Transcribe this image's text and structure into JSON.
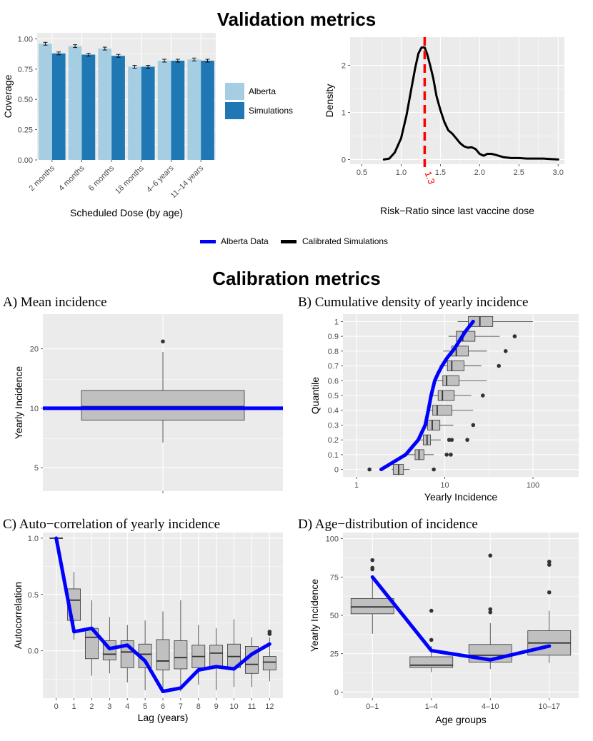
{
  "titles": {
    "validation": "Validation metrics",
    "calibration": "Calibration metrics"
  },
  "legend": {
    "alberta_data": "Alberta Data",
    "calibrated": "Calibrated Simulations"
  },
  "colors": {
    "alberta": "#a6cee3",
    "simulations": "#1f78b4",
    "line_blue": "#0000ff",
    "red_line": "#ff0000",
    "panel_bg": "#ebebeb",
    "box_fill": "#c0c0c0"
  },
  "chart_data": [
    {
      "id": "coverage",
      "type": "bar",
      "title": "",
      "xlabel": "Scheduled Dose (by age)",
      "ylabel": "Coverage",
      "ylim": [
        0,
        1.05
      ],
      "yticks": [
        "0.00",
        "0.25",
        "0.50",
        "0.75",
        "1.00"
      ],
      "categories": [
        "2 months",
        "4 months",
        "6 months",
        "18 months",
        "4–6 years",
        "11–14 years"
      ],
      "series": [
        {
          "name": "Alberta",
          "values": [
            0.96,
            0.94,
            0.92,
            0.77,
            0.82,
            0.83
          ]
        },
        {
          "name": "Simulations",
          "values": [
            0.88,
            0.87,
            0.86,
            0.77,
            0.82,
            0.82
          ]
        }
      ],
      "legend_labels": [
        "Alberta",
        "Simulations"
      ]
    },
    {
      "id": "density",
      "type": "line",
      "xlabel": "Risk−Ratio since last vaccine dose",
      "ylabel": "Density",
      "xlim": [
        0.35,
        3.08
      ],
      "ylim": [
        -0.1,
        2.6
      ],
      "xticks": [
        "0.5",
        "1.0",
        "1.5",
        "2.0",
        "2.5",
        "3.0"
      ],
      "yticks": [
        "0",
        "1",
        "2"
      ],
      "x": [
        0.78,
        0.85,
        0.92,
        1.0,
        1.07,
        1.13,
        1.18,
        1.22,
        1.26,
        1.3,
        1.33,
        1.37,
        1.41,
        1.45,
        1.5,
        1.55,
        1.6,
        1.65,
        1.7,
        1.75,
        1.8,
        1.85,
        1.9,
        1.95,
        2.0,
        2.05,
        2.1,
        2.15,
        2.2,
        2.3,
        2.4,
        2.5,
        2.6,
        2.7,
        2.8,
        2.9,
        3.0
      ],
      "y": [
        0.0,
        0.02,
        0.15,
        0.45,
        0.95,
        1.5,
        1.95,
        2.25,
        2.38,
        2.38,
        2.25,
        2.0,
        1.72,
        1.35,
        1.05,
        0.8,
        0.62,
        0.55,
        0.45,
        0.35,
        0.28,
        0.25,
        0.26,
        0.22,
        0.12,
        0.08,
        0.12,
        0.12,
        0.1,
        0.05,
        0.03,
        0.03,
        0.02,
        0.02,
        0.02,
        0.01,
        0.0
      ],
      "vline": 1.3,
      "vline_label": "1.3"
    },
    {
      "id": "mean_incidence",
      "type": "box",
      "panel_title": "A)  Mean incidence",
      "ylabel": "Yearly Incidence",
      "scale": "log",
      "ylim": [
        3.8,
        30
      ],
      "yticks": [
        "5",
        "10",
        "20"
      ],
      "box": {
        "whisker_low": 6.7,
        "q1": 8.7,
        "median": 10.2,
        "q3": 12.3,
        "whisker_high": 19.3,
        "outliers": [
          21.8
        ]
      },
      "reference_value": 10
    },
    {
      "id": "cumulative_density",
      "type": "box",
      "panel_title": "B)  Cumulative density of yearly incidence",
      "xlabel": "Yearly Incidence",
      "ylabel": "Quantile",
      "scale_x": "log",
      "xlim": [
        0.7,
        330
      ],
      "xticks": [
        "1",
        "10",
        "100"
      ],
      "yticks": [
        "0",
        "0.1",
        "0.2",
        "0.3",
        "0.4",
        "0.5",
        "0.6",
        "0.7",
        "0.8",
        "0.9",
        "1"
      ],
      "boxes": [
        {
          "quantile": 0,
          "whisker_low": 2.5,
          "q1": 2.6,
          "median": 3.0,
          "q3": 3.4,
          "whisker_high": 4.0,
          "outliers": [
            1.4,
            7.5
          ]
        },
        {
          "quantile": 0.1,
          "whisker_low": 3.8,
          "q1": 4.6,
          "median": 5.1,
          "q3": 5.8,
          "whisker_high": 7.5,
          "outliers": [
            10.5,
            11.7
          ]
        },
        {
          "quantile": 0.2,
          "whisker_low": 5.1,
          "q1": 5.7,
          "median": 6.3,
          "q3": 6.9,
          "whisker_high": 9.0,
          "outliers": [
            11.2,
            12.0,
            18.0
          ]
        },
        {
          "quantile": 0.3,
          "whisker_low": 5.7,
          "q1": 6.4,
          "median": 7.2,
          "q3": 8.8,
          "whisker_high": 12.5,
          "outliers": [
            21.0
          ]
        },
        {
          "quantile": 0.4,
          "whisker_low": 6.3,
          "q1": 7.3,
          "median": 8.2,
          "q3": 12.0,
          "whisker_high": 21.0,
          "outliers": []
        },
        {
          "quantile": 0.5,
          "whisker_low": 7.2,
          "q1": 8.4,
          "median": 9.4,
          "q3": 12.8,
          "whisker_high": 20.0,
          "outliers": [
            27.0
          ]
        },
        {
          "quantile": 0.6,
          "whisker_low": 7.9,
          "q1": 9.5,
          "median": 10.5,
          "q3": 14.5,
          "whisker_high": 30.0,
          "outliers": []
        },
        {
          "quantile": 0.7,
          "whisker_low": 8.7,
          "q1": 10.7,
          "median": 12.0,
          "q3": 16.5,
          "whisker_high": 26.0,
          "outliers": [
            41.0
          ]
        },
        {
          "quantile": 0.8,
          "whisker_low": 9.6,
          "q1": 12.0,
          "median": 13.5,
          "q3": 18.5,
          "whisker_high": 30.0,
          "outliers": [
            49.0
          ]
        },
        {
          "quantile": 0.9,
          "whisker_low": 11.0,
          "q1": 13.5,
          "median": 16.0,
          "q3": 22.0,
          "whisker_high": 42.0,
          "outliers": [
            62.0
          ]
        },
        {
          "quantile": 1,
          "whisker_low": 14.0,
          "q1": 18.5,
          "median": 25.0,
          "q3": 35.0,
          "whisker_high": 100.0,
          "outliers": []
        }
      ],
      "alberta_line": {
        "x": [
          1.9,
          3.6,
          5.0,
          6.0,
          6.5,
          7.0,
          7.7,
          8.4,
          9.3,
          10.5,
          13.0,
          17.0,
          21.0
        ],
        "y": [
          0,
          0.1,
          0.2,
          0.3,
          0.4,
          0.5,
          0.6,
          0.65,
          0.7,
          0.75,
          0.82,
          0.93,
          1.0
        ]
      }
    },
    {
      "id": "autocorrelation",
      "type": "box",
      "panel_title": "C)  Auto−correlation of yearly incidence",
      "xlabel": "Lag (years)",
      "ylabel": "Autocorrelation",
      "ylim": [
        -0.42,
        1.05
      ],
      "yticks": [
        "0.0",
        "0.5",
        "1.0"
      ],
      "categories": [
        "0",
        "1",
        "2",
        "3",
        "4",
        "5",
        "6",
        "7",
        "8",
        "9",
        "10",
        "11",
        "12"
      ],
      "boxes": [
        {
          "whisker_low": 1.0,
          "q1": 1.0,
          "median": 1.0,
          "q3": 1.0,
          "whisker_high": 1.0,
          "outliers": []
        },
        {
          "whisker_low": 0.1,
          "q1": 0.27,
          "median": 0.45,
          "q3": 0.55,
          "whisker_high": 0.7,
          "outliers": []
        },
        {
          "whisker_low": -0.22,
          "q1": -0.07,
          "median": 0.12,
          "q3": 0.2,
          "whisker_high": 0.45,
          "outliers": []
        },
        {
          "whisker_low": -0.2,
          "q1": -0.08,
          "median": -0.03,
          "q3": 0.09,
          "whisker_high": 0.3,
          "outliers": []
        },
        {
          "whisker_low": -0.28,
          "q1": -0.15,
          "median": -0.01,
          "q3": 0.09,
          "whisker_high": 0.23,
          "outliers": []
        },
        {
          "whisker_low": -0.35,
          "q1": -0.15,
          "median": -0.03,
          "q3": 0.06,
          "whisker_high": 0.27,
          "outliers": []
        },
        {
          "whisker_low": -0.36,
          "q1": -0.17,
          "median": -0.09,
          "q3": 0.1,
          "whisker_high": 0.35,
          "outliers": []
        },
        {
          "whisker_low": -0.36,
          "q1": -0.16,
          "median": -0.06,
          "q3": 0.09,
          "whisker_high": 0.45,
          "outliers": []
        },
        {
          "whisker_low": -0.3,
          "q1": -0.15,
          "median": -0.05,
          "q3": 0.05,
          "whisker_high": 0.23,
          "outliers": []
        },
        {
          "whisker_low": -0.35,
          "q1": -0.14,
          "median": -0.02,
          "q3": 0.05,
          "whisker_high": 0.2,
          "outliers": []
        },
        {
          "whisker_low": -0.32,
          "q1": -0.15,
          "median": -0.05,
          "q3": 0.06,
          "whisker_high": 0.28,
          "outliers": []
        },
        {
          "whisker_low": -0.32,
          "q1": -0.2,
          "median": -0.12,
          "q3": 0.04,
          "whisker_high": 0.12,
          "outliers": []
        },
        {
          "whisker_low": -0.27,
          "q1": -0.17,
          "median": -0.1,
          "q3": -0.05,
          "whisker_high": 0.12,
          "outliers": [
            0.15,
            0.17
          ]
        }
      ],
      "alberta_line": {
        "x": [
          0,
          1,
          2,
          3,
          4,
          5,
          6,
          7,
          8,
          9,
          10,
          11,
          12
        ],
        "y": [
          1.0,
          0.17,
          0.2,
          0.02,
          0.05,
          -0.09,
          -0.36,
          -0.33,
          -0.17,
          -0.14,
          -0.16,
          -0.03,
          0.06
        ]
      }
    },
    {
      "id": "age_distribution",
      "type": "box",
      "panel_title": "D)  Age−distribution of incidence",
      "xlabel": "Age groups",
      "ylabel": "Yearly Incidence",
      "ylim": [
        -4,
        104
      ],
      "yticks": [
        "0",
        "25",
        "50",
        "75",
        "100"
      ],
      "categories": [
        "0–1",
        "1–4",
        "4–10",
        "10–17"
      ],
      "boxes": [
        {
          "whisker_low": 38,
          "q1": 51,
          "median": 55.5,
          "q3": 61,
          "whisker_high": 75,
          "outliers": [
            80,
            81,
            86
          ]
        },
        {
          "whisker_low": 13,
          "q1": 16,
          "median": 17.5,
          "q3": 23,
          "whisker_high": 30,
          "outliers": [
            34,
            53
          ]
        },
        {
          "whisker_low": 15,
          "q1": 19.5,
          "median": 24,
          "q3": 31,
          "whisker_high": 45,
          "outliers": [
            52,
            54,
            89
          ]
        },
        {
          "whisker_low": 19,
          "q1": 24,
          "median": 32,
          "q3": 40,
          "whisker_high": 53,
          "outliers": [
            65,
            83,
            85
          ]
        }
      ],
      "alberta_line": {
        "x": [
          "0–1",
          "1–4",
          "4–10",
          "10–17"
        ],
        "y": [
          75,
          27,
          21,
          30
        ]
      }
    }
  ]
}
